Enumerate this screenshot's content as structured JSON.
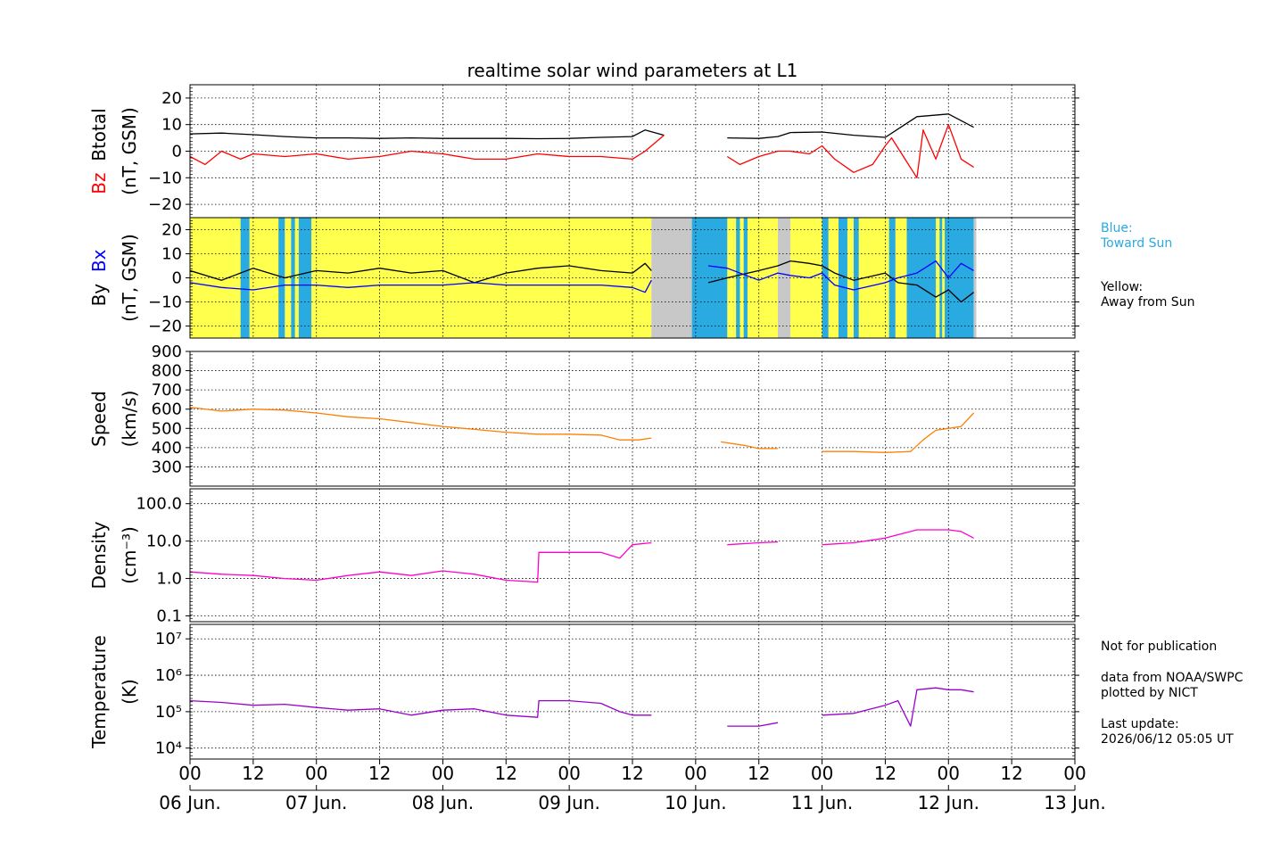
{
  "chart_data": {
    "type": "line",
    "title": "realtime solar wind parameters at L1",
    "x_tick_labels": [
      "00",
      "12",
      "00",
      "12",
      "00",
      "12",
      "00",
      "12",
      "00",
      "12",
      "00",
      "12",
      "00",
      "12",
      "00"
    ],
    "x_date_labels": [
      "06 Jun.",
      "07 Jun.",
      "08 Jun.",
      "09 Jun.",
      "10 Jun.",
      "11 Jun.",
      "12 Jun.",
      "13 Jun."
    ],
    "x_range_days": [
      0,
      7
    ],
    "grid": true,
    "panels": [
      {
        "id": "mag-bz-btotal",
        "ylabel_parts": [
          {
            "text": "Bz",
            "color": "#ff0000"
          },
          {
            "text": "Btotal",
            "color": "#000000"
          }
        ],
        "ylabel2": "(nT, GSM)",
        "ylim": [
          -25,
          25
        ],
        "ytick_labels": [
          "20",
          "10",
          "0",
          "−10",
          "−20"
        ],
        "ytick_values": [
          20,
          10,
          0,
          -10,
          -20
        ],
        "series": [
          {
            "name": "Btotal",
            "color": "#000000",
            "x": [
              0,
              0.25,
              0.5,
              0.75,
              1,
              1.25,
              1.5,
              1.75,
              2,
              2.25,
              2.5,
              2.75,
              3,
              3.25,
              3.5,
              3.6,
              3.75,
              4.0,
              4.25,
              4.5,
              4.65,
              4.75,
              5.0,
              5.25,
              5.5,
              5.75,
              6.0,
              6.2
            ],
            "y": [
              6.5,
              6.8,
              6.2,
              5.5,
              5,
              5,
              4.8,
              5,
              4.8,
              4.8,
              4.8,
              4.7,
              4.8,
              5.2,
              5.5,
              8,
              6,
              null,
              5,
              4.8,
              5.5,
              7,
              7.2,
              6,
              5.2,
              13,
              14,
              9
            ]
          },
          {
            "name": "Bz",
            "color": "#ff0000",
            "x": [
              0,
              0.12,
              0.25,
              0.4,
              0.5,
              0.75,
              1,
              1.25,
              1.5,
              1.75,
              2,
              2.25,
              2.5,
              2.75,
              3,
              3.25,
              3.5,
              3.6,
              3.75,
              4.0,
              4.25,
              4.35,
              4.5,
              4.65,
              4.75,
              4.9,
              5.0,
              5.1,
              5.25,
              5.4,
              5.5,
              5.55,
              5.75,
              5.8,
              5.9,
              6.0,
              6.1,
              6.2
            ],
            "y": [
              -2,
              -5,
              0,
              -3,
              -1,
              -2,
              -1,
              -3,
              -2,
              0,
              -1,
              -3,
              -3,
              -1,
              -2,
              -2,
              -3,
              0,
              6,
              null,
              -2,
              -5,
              -2,
              0,
              0,
              -1,
              2,
              -3,
              -8,
              -5,
              2,
              5,
              -10,
              8,
              -3,
              10,
              -3,
              -6
            ]
          }
        ]
      },
      {
        "id": "mag-bx-by",
        "ylabel_parts": [
          {
            "text": "By",
            "color": "#000000"
          },
          {
            "text": "Bx",
            "color": "#0000ff"
          }
        ],
        "ylabel2": "(nT, GSM)",
        "ylim": [
          -25,
          25
        ],
        "ytick_labels": [
          "20",
          "10",
          "0",
          "−10",
          "−20"
        ],
        "ytick_values": [
          20,
          10,
          0,
          -10,
          -20
        ],
        "sector_colors": {
          "away": "#ffff4d",
          "toward": "#29aae1",
          "nodata": "#c8c8c8"
        },
        "sectors": [
          {
            "x0": 0,
            "x1": 3.65,
            "kind": "away"
          },
          {
            "x0": 3.65,
            "x1": 3.97,
            "kind": "nodata"
          },
          {
            "x0": 3.97,
            "x1": 4.3,
            "kind": "toward"
          },
          {
            "x0": 4.3,
            "x1": 4.65,
            "kind": "away"
          },
          {
            "x0": 4.65,
            "x1": 4.75,
            "kind": "nodata"
          },
          {
            "x0": 4.75,
            "x1": 5.67,
            "kind": "away"
          },
          {
            "x0": 5.67,
            "x1": 6.2,
            "kind": "toward"
          },
          {
            "x0": 6.2,
            "x1": 6.22,
            "kind": "nodata"
          }
        ],
        "sector_stripes": [
          {
            "x0": 0.4,
            "x1": 0.47,
            "kind": "toward"
          },
          {
            "x0": 0.7,
            "x1": 0.75,
            "kind": "toward"
          },
          {
            "x0": 0.8,
            "x1": 0.83,
            "kind": "toward"
          },
          {
            "x0": 0.86,
            "x1": 0.96,
            "kind": "toward"
          },
          {
            "x0": 4.25,
            "x1": 4.3,
            "kind": "away"
          },
          {
            "x0": 4.32,
            "x1": 4.35,
            "kind": "toward"
          },
          {
            "x0": 4.38,
            "x1": 4.41,
            "kind": "toward"
          },
          {
            "x0": 5.0,
            "x1": 5.05,
            "kind": "toward"
          },
          {
            "x0": 5.13,
            "x1": 5.2,
            "kind": "toward"
          },
          {
            "x0": 5.25,
            "x1": 5.29,
            "kind": "toward"
          },
          {
            "x0": 5.53,
            "x1": 5.58,
            "kind": "toward"
          },
          {
            "x0": 5.9,
            "x1": 5.93,
            "kind": "away"
          },
          {
            "x0": 5.95,
            "x1": 5.97,
            "kind": "away"
          }
        ],
        "series": [
          {
            "name": "By",
            "color": "#000000",
            "x": [
              0,
              0.25,
              0.5,
              0.75,
              1,
              1.25,
              1.5,
              1.75,
              2,
              2.25,
              2.5,
              2.75,
              3,
              3.25,
              3.5,
              3.6,
              3.65,
              4.0,
              4.1,
              4.25,
              4.5,
              4.65,
              4.75,
              4.9,
              5.0,
              5.1,
              5.25,
              5.5,
              5.6,
              5.75,
              5.9,
              6.0,
              6.1,
              6.2
            ],
            "y": [
              3,
              -1,
              4,
              0,
              3,
              2,
              4,
              2,
              3,
              -2,
              2,
              4,
              5,
              3,
              2,
              6,
              3,
              null,
              -2,
              0,
              3,
              5,
              7,
              6,
              5,
              2,
              -1,
              2,
              -2,
              -3,
              -8,
              -5,
              -10,
              -6
            ]
          },
          {
            "name": "Bx",
            "color": "#0000ff",
            "x": [
              0,
              0.25,
              0.5,
              0.75,
              1,
              1.25,
              1.5,
              1.75,
              2,
              2.25,
              2.5,
              2.75,
              3,
              3.25,
              3.5,
              3.6,
              3.65,
              4.0,
              4.1,
              4.25,
              4.5,
              4.65,
              4.75,
              4.9,
              5.0,
              5.1,
              5.25,
              5.5,
              5.6,
              5.75,
              5.9,
              6.0,
              6.1,
              6.2
            ],
            "y": [
              -2,
              -4,
              -5,
              -3,
              -3,
              -4,
              -3,
              -3,
              -3,
              -2,
              -3,
              -3,
              -3,
              -3,
              -4,
              -6,
              -1,
              null,
              5,
              4,
              -1,
              2,
              1,
              0,
              2,
              -3,
              -5,
              -2,
              0,
              2,
              7,
              0,
              6,
              3
            ]
          }
        ]
      },
      {
        "id": "speed",
        "ylabel_parts": [
          {
            "text": "Speed",
            "color": "#000000"
          }
        ],
        "ylabel2": "(km/s)",
        "ylim": [
          200,
          900
        ],
        "ytick_labels": [
          "900",
          "800",
          "700",
          "600",
          "500",
          "400",
          "300"
        ],
        "ytick_values": [
          900,
          800,
          700,
          600,
          500,
          400,
          300
        ],
        "series": [
          {
            "name": "Speed",
            "color": "#ff8000",
            "x": [
              0,
              0.25,
              0.5,
              0.75,
              1,
              1.25,
              1.5,
              1.75,
              2,
              2.25,
              2.5,
              2.75,
              3,
              3.25,
              3.4,
              3.55,
              3.65,
              4.0,
              4.2,
              4.4,
              4.5,
              4.65,
              4.75,
              5.0,
              5.25,
              5.5,
              5.7,
              5.8,
              5.9,
              6.0,
              6.1,
              6.2
            ],
            "y": [
              610,
              590,
              600,
              595,
              580,
              560,
              550,
              530,
              510,
              495,
              480,
              470,
              470,
              465,
              440,
              440,
              450,
              null,
              430,
              410,
              395,
              395,
              null,
              380,
              380,
              375,
              380,
              440,
              490,
              500,
              510,
              580
            ]
          }
        ]
      },
      {
        "id": "density",
        "ylabel_parts": [
          {
            "text": "Density",
            "color": "#000000"
          }
        ],
        "ylabel2": "(cm⁻³)",
        "yscale": "log",
        "ylim": [
          0.07,
          250
        ],
        "ytick_labels": [
          "100.0",
          "10.0",
          "1.0",
          "0.1"
        ],
        "ytick_values": [
          100,
          10,
          1,
          0.1
        ],
        "series": [
          {
            "name": "Density",
            "color": "#ff00cc",
            "x": [
              0,
              0.25,
              0.5,
              0.75,
              1,
              1.25,
              1.5,
              1.75,
              2,
              2.25,
              2.5,
              2.75,
              2.76,
              3,
              3.25,
              3.4,
              3.5,
              3.65,
              4.0,
              4.25,
              4.5,
              4.65,
              4.75,
              5.0,
              5.25,
              5.5,
              5.75,
              6.0,
              6.1,
              6.2
            ],
            "y": [
              1.5,
              1.3,
              1.2,
              1.0,
              0.9,
              1.2,
              1.5,
              1.2,
              1.6,
              1.3,
              0.9,
              0.8,
              5,
              5,
              5,
              3.5,
              8,
              9,
              null,
              8,
              9,
              9.5,
              null,
              8,
              9,
              12,
              20,
              20,
              18,
              12
            ]
          }
        ]
      },
      {
        "id": "temperature",
        "ylabel_parts": [
          {
            "text": "Temperature",
            "color": "#000000"
          }
        ],
        "ylabel2": "(K)",
        "yscale": "log",
        "ylim": [
          5000,
          25000000
        ],
        "ytick_labels": [
          "10⁷",
          "10⁶",
          "10⁵",
          "10⁴"
        ],
        "ytick_values": [
          10000000,
          1000000,
          100000,
          10000
        ],
        "series": [
          {
            "name": "Temperature",
            "color": "#9900cc",
            "x": [
              0,
              0.25,
              0.5,
              0.75,
              1,
              1.25,
              1.5,
              1.75,
              2,
              2.25,
              2.5,
              2.75,
              2.76,
              3,
              3.25,
              3.4,
              3.5,
              3.65,
              4.0,
              4.25,
              4.5,
              4.65,
              4.75,
              5.0,
              5.25,
              5.5,
              5.6,
              5.7,
              5.75,
              5.9,
              6.0,
              6.1,
              6.2
            ],
            "y": [
              200000,
              180000,
              150000,
              160000,
              130000,
              110000,
              120000,
              80000,
              110000,
              120000,
              80000,
              70000,
              200000,
              200000,
              170000,
              100000,
              80000,
              80000,
              null,
              40000,
              40000,
              50000,
              null,
              80000,
              90000,
              150000,
              200000,
              40000,
              400000,
              450000,
              400000,
              400000,
              350000
            ]
          }
        ]
      }
    ]
  },
  "legend": {
    "blue_label": "Blue:\nToward Sun",
    "blue_color": "#29aae1",
    "yellow_label": "Yellow:\nAway from Sun"
  },
  "notes": {
    "publication": "Not for publication",
    "source": "data from NOAA/SWPC\nplotted by NICT",
    "update": "Last update:\n2026/06/12 05:05 UT"
  }
}
